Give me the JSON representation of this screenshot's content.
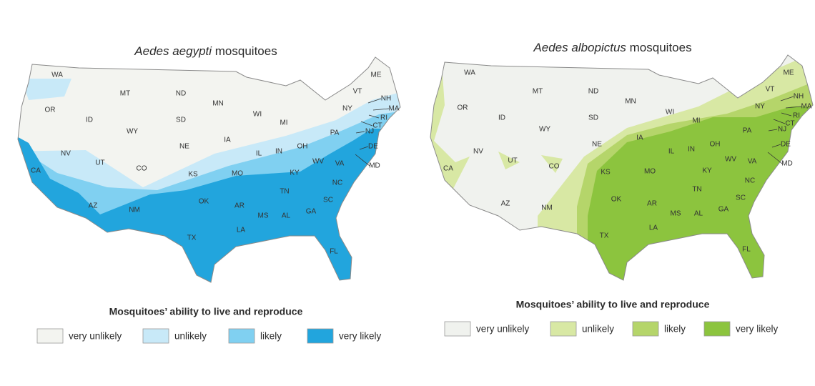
{
  "maps": [
    {
      "title": {
        "species": "Aedes aegypti",
        "rest": "mosquitoes"
      },
      "state_labels": [
        "WA",
        "OR",
        "CA",
        "ID",
        "NV",
        "MT",
        "WY",
        "UT",
        "AZ",
        "CO",
        "NM",
        "ND",
        "SD",
        "NE",
        "KS",
        "OK",
        "TX",
        "MN",
        "IA",
        "MO",
        "AR",
        "LA",
        "WI",
        "IL",
        "MI",
        "IN",
        "OH",
        "KY",
        "TN",
        "MS",
        "AL",
        "GA",
        "FL",
        "SC",
        "NC",
        "VA",
        "WV",
        "PA",
        "NY",
        "VT",
        "ME",
        "NH",
        "MA",
        "RI",
        "CT",
        "NJ",
        "DE",
        "MD"
      ],
      "legend": {
        "title": "Mosquitoes’ ability to live and reproduce",
        "items": [
          {
            "label": "very unlikely",
            "color": "#f3f4f0"
          },
          {
            "label": "unlikely",
            "color": "#c8e9f8"
          },
          {
            "label": "likely",
            "color": "#80d0f1"
          },
          {
            "label": "very likely",
            "color": "#22a5dd"
          }
        ]
      }
    },
    {
      "title": {
        "species": "Aedes albopictus",
        "rest": "mosquitoes"
      },
      "state_labels": [
        "WA",
        "OR",
        "CA",
        "ID",
        "NV",
        "MT",
        "WY",
        "UT",
        "AZ",
        "CO",
        "NM",
        "ND",
        "SD",
        "NE",
        "KS",
        "OK",
        "TX",
        "MN",
        "IA",
        "MO",
        "AR",
        "LA",
        "WI",
        "IL",
        "MI",
        "IN",
        "OH",
        "KY",
        "TN",
        "MS",
        "AL",
        "GA",
        "FL",
        "SC",
        "NC",
        "VA",
        "WV",
        "PA",
        "NY",
        "VT",
        "ME",
        "NH",
        "MA",
        "RI",
        "CT",
        "NJ",
        "DE",
        "MD"
      ],
      "legend": {
        "title": "Mosquitoes’ ability to live and reproduce",
        "items": [
          {
            "label": "very unlikely",
            "color": "#f0f2ee"
          },
          {
            "label": "unlikely",
            "color": "#d8e8a4"
          },
          {
            "label": "likely",
            "color": "#b5d56a"
          },
          {
            "label": "very likely",
            "color": "#8cc43e"
          }
        ]
      }
    }
  ]
}
